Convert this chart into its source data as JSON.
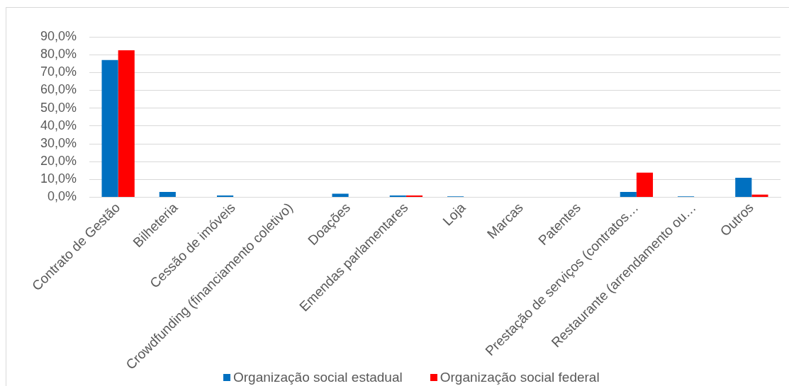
{
  "chart_data": {
    "type": "bar",
    "categories": [
      "Contrato de Gestão",
      "Bilheteria",
      "Cessão de imóveis",
      "Crowdfunding (financiamento coletivo)",
      "Doações",
      "Emendas parlamentares",
      "Loja",
      "Marcas",
      "Patentes",
      "Prestação de serviços (contratos…",
      "Restaurante (arrendamento ou…",
      "Outros"
    ],
    "series": [
      {
        "name": "Organização social estadual",
        "color": "#0070c0",
        "values": [
          77.0,
          3.0,
          1.0,
          0,
          2.0,
          1.0,
          0.5,
          0,
          0,
          3.0,
          0.5,
          10.9
        ]
      },
      {
        "name": "Organização social federal",
        "color": "#ff0000",
        "values": [
          82.5,
          0,
          0,
          0,
          0,
          1.0,
          0,
          0,
          0,
          13.8,
          0,
          1.5
        ]
      }
    ],
    "ylim": [
      0,
      90
    ],
    "yticks": [
      {
        "value": 0,
        "label": "0,0%"
      },
      {
        "value": 10,
        "label": "10,0%"
      },
      {
        "value": 20,
        "label": "20,0%"
      },
      {
        "value": 30,
        "label": "30,0%"
      },
      {
        "value": 40,
        "label": "40,0%"
      },
      {
        "value": 50,
        "label": "50,0%"
      },
      {
        "value": 60,
        "label": "60,0%"
      },
      {
        "value": 70,
        "label": "70,0%"
      },
      {
        "value": 80,
        "label": "80,0%"
      },
      {
        "value": 90,
        "label": "90,0%"
      }
    ],
    "grid": "y",
    "legend": "bottom"
  }
}
